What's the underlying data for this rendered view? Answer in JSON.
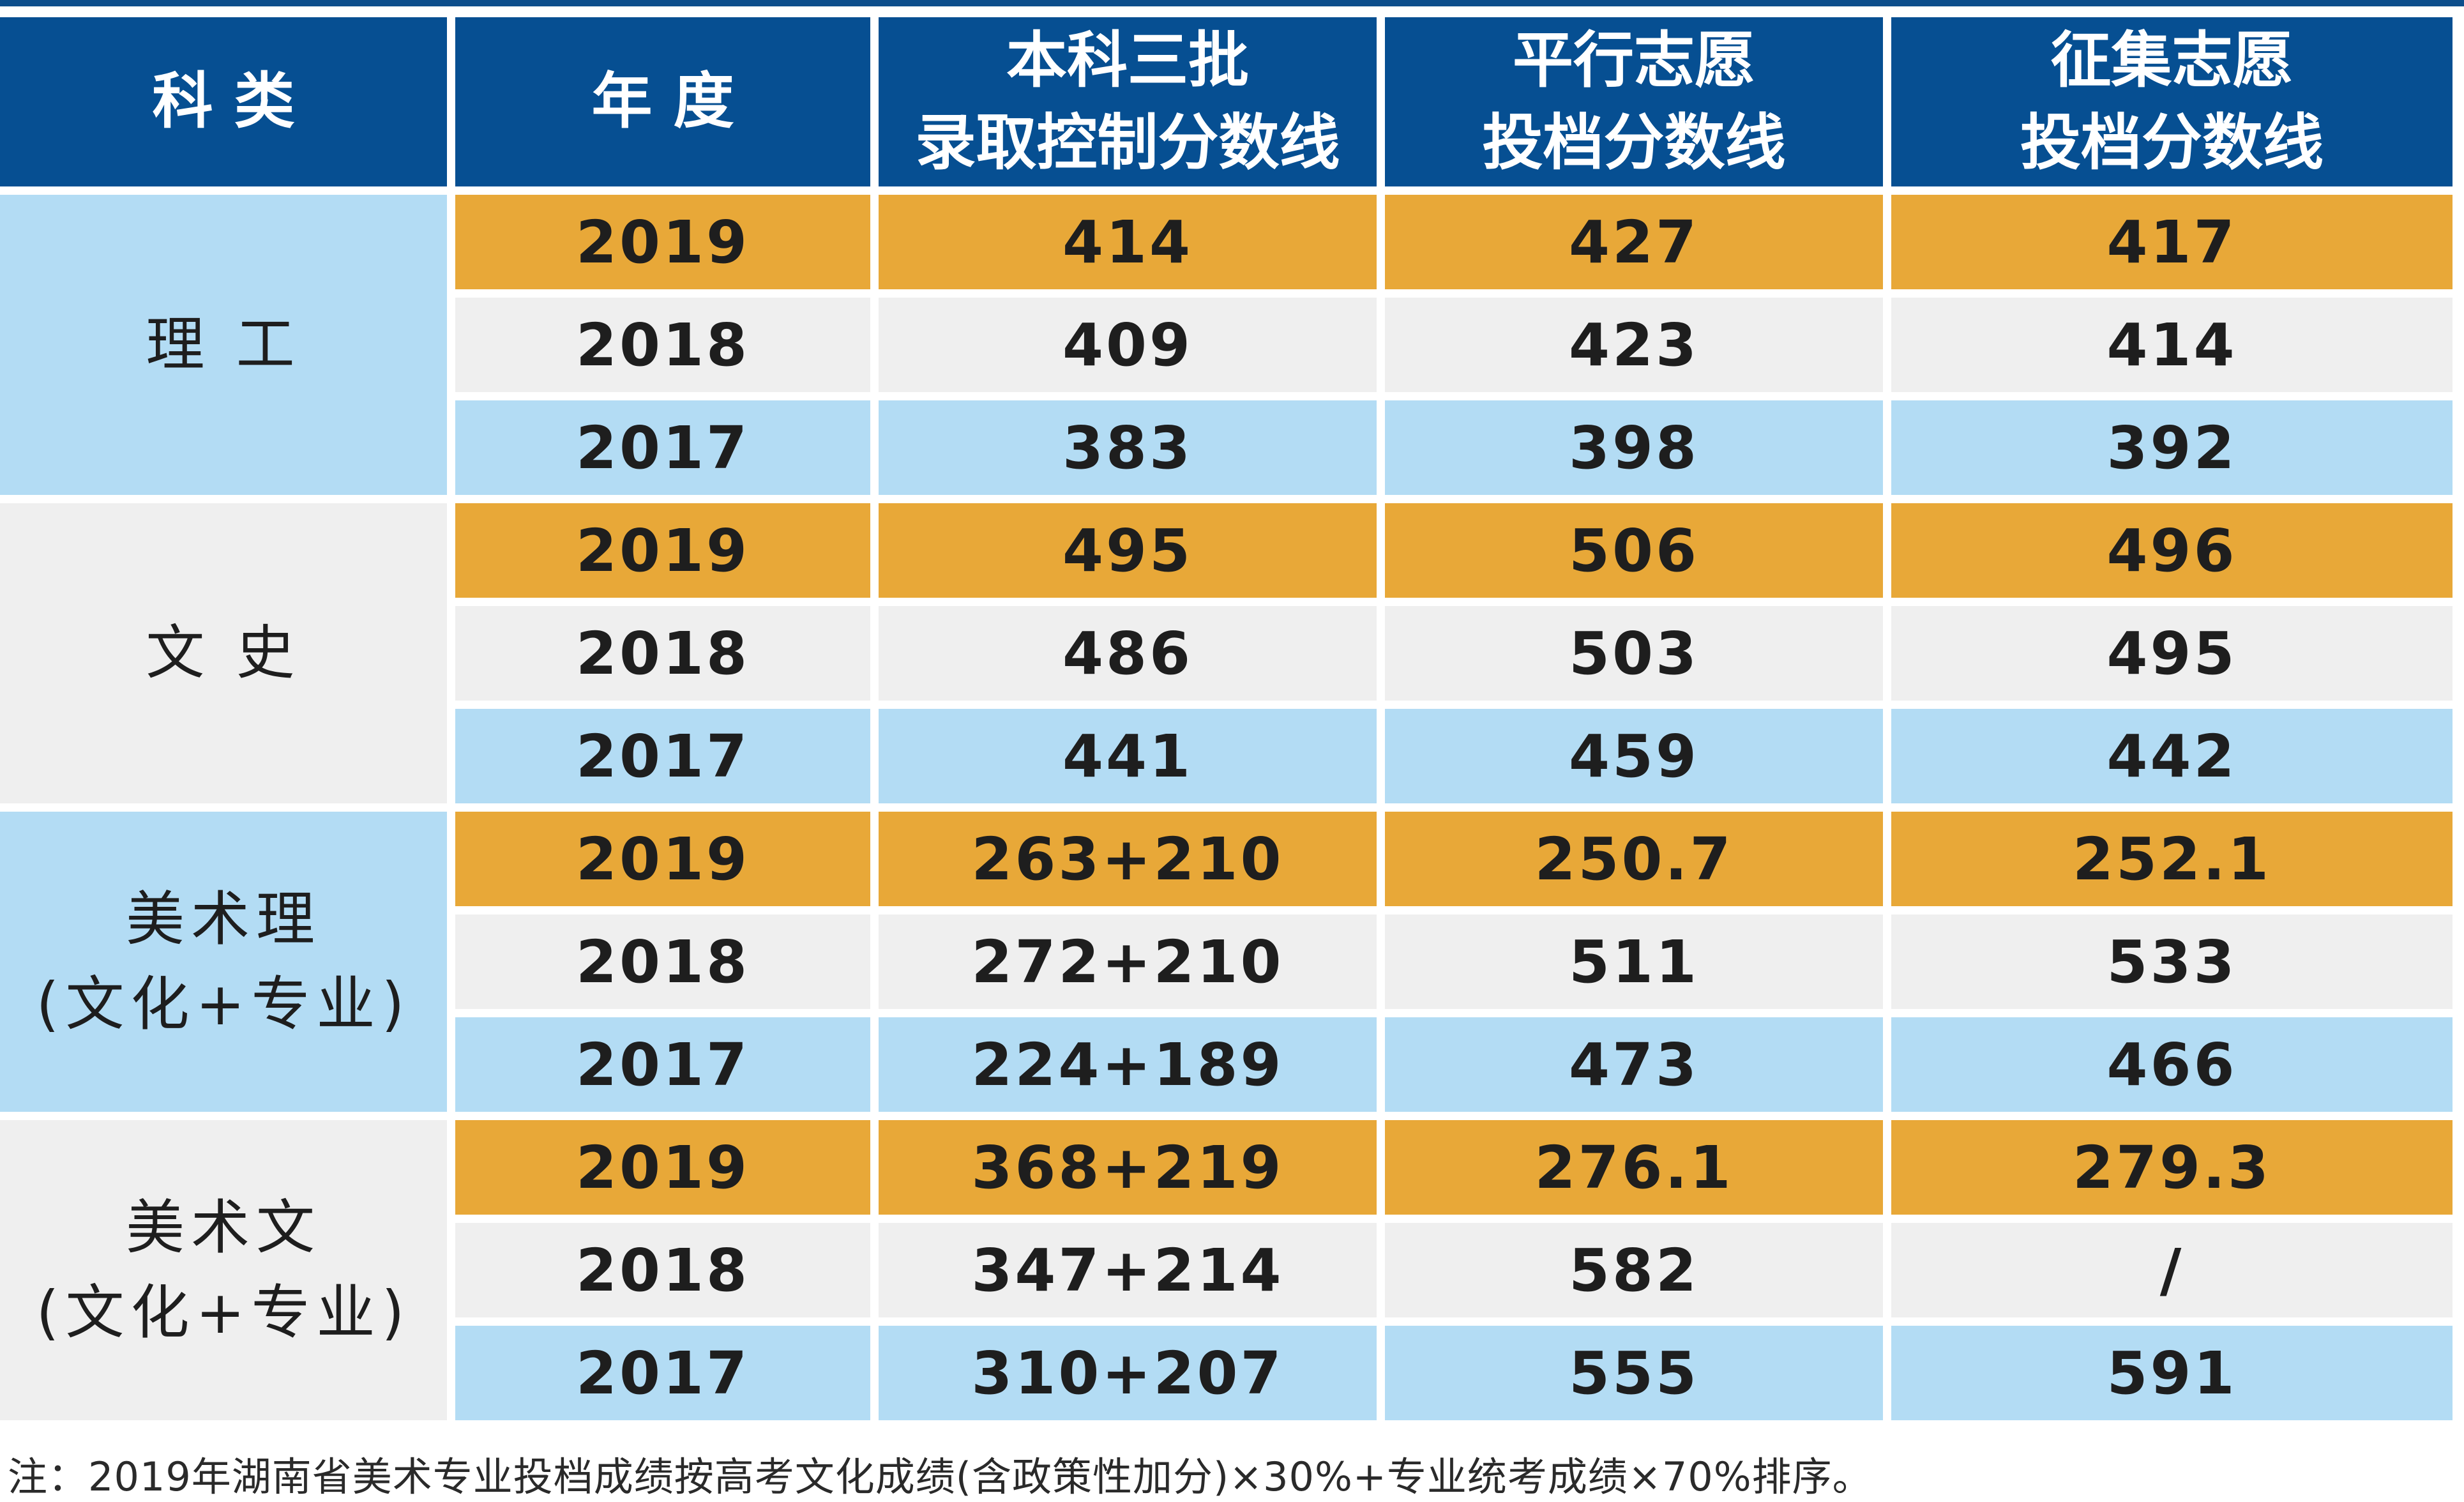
{
  "headers": {
    "category": "科 类",
    "year": "年 度",
    "col_control": [
      "本科三批",
      "录取控制分数线"
    ],
    "col_parallel": [
      "平行志愿",
      "投档分数线"
    ],
    "col_collect": [
      "征集志愿",
      "投档分数线"
    ]
  },
  "groups": [
    {
      "name_lines": [
        "理 工"
      ],
      "rows": [
        {
          "year": "2019",
          "control": "414",
          "parallel": "427",
          "collect": "417"
        },
        {
          "year": "2018",
          "control": "409",
          "parallel": "423",
          "collect": "414"
        },
        {
          "year": "2017",
          "control": "383",
          "parallel": "398",
          "collect": "392"
        }
      ]
    },
    {
      "name_lines": [
        "文 史"
      ],
      "rows": [
        {
          "year": "2019",
          "control": "495",
          "parallel": "506",
          "collect": "496"
        },
        {
          "year": "2018",
          "control": "486",
          "parallel": "503",
          "collect": "495"
        },
        {
          "year": "2017",
          "control": "441",
          "parallel": "459",
          "collect": "442"
        }
      ]
    },
    {
      "name_lines": [
        "美术理",
        "(文化+专业)"
      ],
      "rows": [
        {
          "year": "2019",
          "control": "263+210",
          "parallel": "250.7",
          "collect": "252.1"
        },
        {
          "year": "2018",
          "control": "272+210",
          "parallel": "511",
          "collect": "533"
        },
        {
          "year": "2017",
          "control": "224+189",
          "parallel": "473",
          "collect": "466"
        }
      ]
    },
    {
      "name_lines": [
        "美术文",
        "(文化+专业)"
      ],
      "rows": [
        {
          "year": "2019",
          "control": "368+219",
          "parallel": "276.1",
          "collect": "279.3"
        },
        {
          "year": "2018",
          "control": "347+214",
          "parallel": "582",
          "collect": "/"
        },
        {
          "year": "2017",
          "control": "310+207",
          "parallel": "555",
          "collect": "591"
        }
      ]
    }
  ],
  "footnote": "注：2019年湖南省美术专业投档成绩按高考文化成绩(含政策性加分)×30%+专业统考成绩×70%排序。",
  "colors": {
    "header_bg": "#064f92",
    "row_2019": "#e8a838",
    "row_2018": "#efefef",
    "row_2017": "#b3dcf4"
  }
}
